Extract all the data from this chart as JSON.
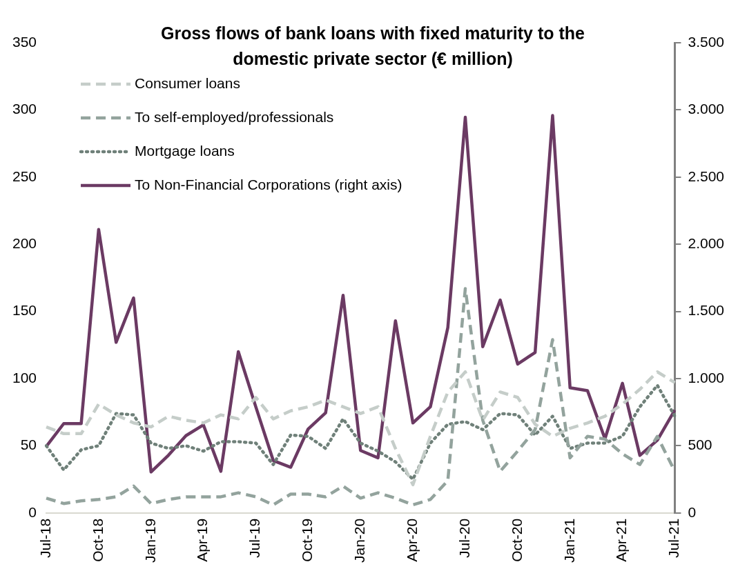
{
  "chart_data": {
    "type": "line",
    "title": "Gross flows of bank loans with fixed maturity to the domestic private sector (€ million)",
    "categories": [
      "Jul-18",
      null,
      null,
      "Oct-18",
      null,
      null,
      "Jan-19",
      null,
      null,
      "Apr-19",
      null,
      null,
      "Jul-19",
      null,
      null,
      "Oct-19",
      null,
      null,
      "Jan-20",
      null,
      null,
      "Apr-20",
      null,
      null,
      "Jul-20",
      null,
      null,
      "Oct-20",
      null,
      null,
      "Jan-21",
      null,
      null,
      "Apr-21",
      null,
      null,
      "Jul-21"
    ],
    "series": [
      {
        "name": "Consumer loans",
        "color": "#c5cdc9",
        "line_style": "dashed",
        "values": [
          64,
          59,
          59,
          81,
          73,
          67,
          64,
          72,
          69,
          67,
          73,
          70,
          86,
          70,
          76,
          79,
          84,
          79,
          74,
          79,
          48,
          21,
          57,
          90,
          105,
          69,
          90,
          86,
          66,
          57,
          63,
          67,
          72,
          81,
          92,
          105,
          97
        ]
      },
      {
        "name": "To self-employed/professionals",
        "color": "#93a39d",
        "line_style": "dashed",
        "values": [
          11,
          7,
          9,
          10,
          12,
          20,
          7,
          10,
          12,
          12,
          12,
          15,
          12,
          6,
          14,
          14,
          12,
          20,
          11,
          15,
          11,
          6,
          10,
          24,
          167,
          69,
          31,
          46,
          62,
          129,
          41,
          57,
          55,
          44,
          36,
          57,
          31
        ]
      },
      {
        "name": "Mortgage loans",
        "color": "#6f8079",
        "line_style": "dotted",
        "values": [
          50,
          32,
          47,
          50,
          74,
          73,
          52,
          48,
          50,
          46,
          53,
          53,
          52,
          36,
          58,
          57,
          48,
          70,
          52,
          46,
          38,
          25,
          52,
          66,
          68,
          62,
          74,
          73,
          58,
          72,
          48,
          52,
          52,
          57,
          79,
          95,
          72
        ]
      },
      {
        "name": "To Non-Financial Corporations (right axis)",
        "color": "#6b3a63",
        "line_style": "solid",
        "axis": "y2",
        "values": [
          495,
          665,
          665,
          2110,
          1270,
          1600,
          305,
          430,
          575,
          655,
          310,
          1200,
          790,
          390,
          340,
          625,
          745,
          1620,
          465,
          410,
          1430,
          670,
          790,
          1380,
          2945,
          1237,
          1585,
          1108,
          1195,
          2958,
          932,
          910,
          552,
          965,
          428,
          541,
          766
        ]
      }
    ],
    "ylim": [
      0,
      350
    ],
    "yticks": [
      0,
      50,
      100,
      150,
      200,
      250,
      300,
      350
    ],
    "y2lim": [
      0,
      3500
    ],
    "y2ticks": [
      0,
      {
        "value": 500,
        "label": "500"
      },
      {
        "value": 1000,
        "label": "1.000"
      },
      {
        "value": 1500,
        "label": "1.500"
      },
      {
        "value": 2000,
        "label": "2.000"
      },
      {
        "value": 2500,
        "label": "2.500"
      },
      {
        "value": 3000,
        "label": "3.000"
      },
      {
        "value": 3500,
        "label": "3.500"
      }
    ],
    "legend": "top left",
    "grid": false,
    "marker": "none"
  }
}
